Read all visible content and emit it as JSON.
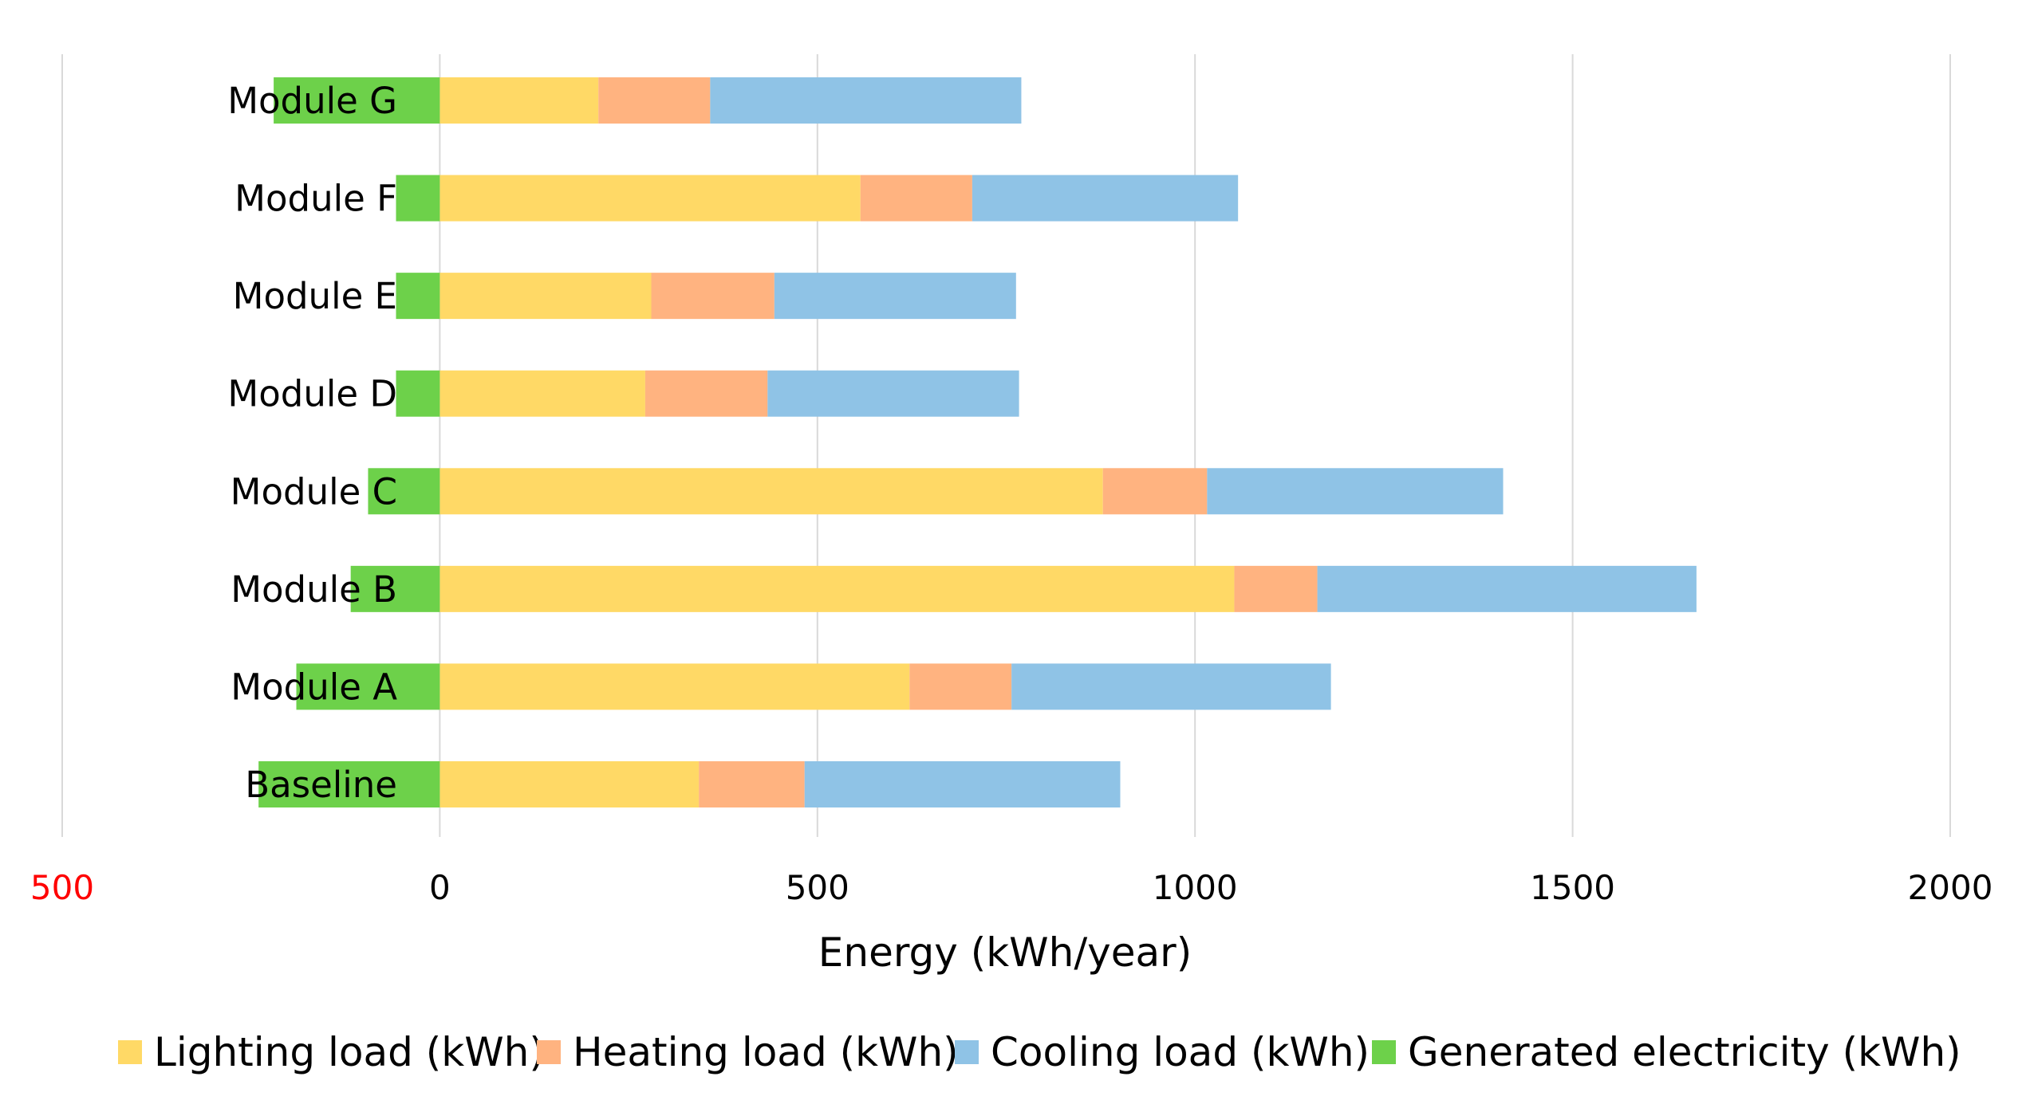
{
  "chart_data": {
    "type": "bar",
    "orientation": "horizontal",
    "stacked": true,
    "title": "",
    "xlabel": "Energy (kWh/year)",
    "ylabel": "",
    "xlim": [
      -500,
      2000
    ],
    "x_ticks": [
      {
        "value": -500,
        "label": "500",
        "color": "#ff0000"
      },
      {
        "value": 0,
        "label": "0",
        "color": "#000000"
      },
      {
        "value": 500,
        "label": "500",
        "color": "#000000"
      },
      {
        "value": 1000,
        "label": "1000",
        "color": "#000000"
      },
      {
        "value": 1500,
        "label": "1500",
        "color": "#000000"
      },
      {
        "value": 2000,
        "label": "2000",
        "color": "#000000"
      }
    ],
    "grid": true,
    "legend_position": "bottom",
    "categories": [
      "Module G",
      "Module F",
      "Module E",
      "Module D",
      "Module C",
      "Module B",
      "Module A",
      "Baseline"
    ],
    "series": [
      {
        "name": "Lighting load (kWh)",
        "color": "#ffd966",
        "values": [
          210,
          557,
          280,
          272,
          878,
          1052,
          622,
          343
        ]
      },
      {
        "name": "Heating load (kWh)",
        "color": "#ffb380",
        "values": [
          148,
          148,
          163,
          162,
          138,
          110,
          135,
          140
        ]
      },
      {
        "name": "Cooling load (kWh)",
        "color": "#8fc3e6",
        "values": [
          412,
          352,
          320,
          333,
          392,
          502,
          423,
          418
        ]
      },
      {
        "name": "Generated electricity (kWh)",
        "color": "#6dd14a",
        "values": [
          -220,
          -58,
          -58,
          -58,
          -95,
          -118,
          -190,
          -240
        ]
      }
    ]
  }
}
